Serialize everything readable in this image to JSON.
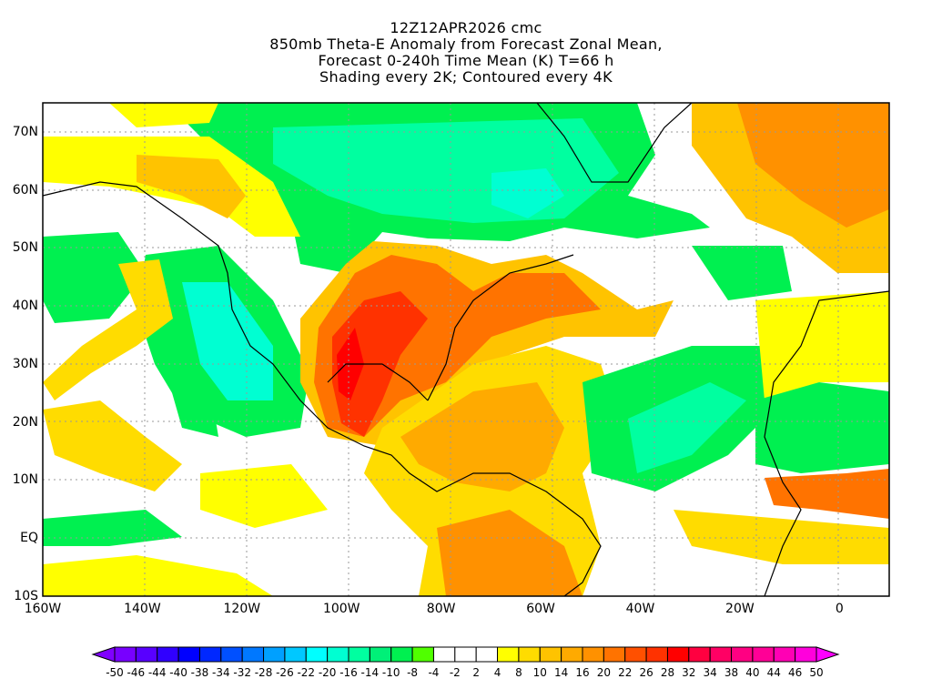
{
  "title": {
    "line1": "12Z12APR2026 cmc",
    "line2": "850mb Theta-E Anomaly from Forecast Zonal Mean,",
    "line3": "Forecast 0-240h Time Mean (K) T=66 h",
    "line4": "Shading every 2K; Contoured every 4K"
  },
  "axes": {
    "lat_labels": [
      "70N",
      "60N",
      "50N",
      "40N",
      "30N",
      "20N",
      "10N",
      "EQ",
      "10S"
    ],
    "lat_values": [
      70,
      60,
      50,
      40,
      30,
      20,
      10,
      0,
      -10
    ],
    "lon_labels": [
      "160W",
      "140W",
      "120W",
      "100W",
      "80W",
      "60W",
      "40W",
      "20W",
      "0"
    ],
    "lon_values": [
      -160,
      -140,
      -120,
      -100,
      -80,
      -60,
      -40,
      -20,
      0
    ],
    "lon_range": [
      -160,
      10
    ],
    "lat_range": [
      -10,
      75
    ]
  },
  "colorbar": {
    "labels": [
      "-50",
      "-46",
      "-44",
      "-40",
      "-38",
      "-34",
      "-32",
      "-28",
      "-26",
      "-22",
      "-20",
      "-16",
      "-14",
      "-10",
      "-8",
      "-4",
      "-2",
      "2",
      "4",
      "8",
      "10",
      "14",
      "16",
      "20",
      "22",
      "26",
      "28",
      "32",
      "34",
      "38",
      "40",
      "44",
      "46",
      "50"
    ],
    "low_arrow_color": "#8000ff",
    "high_arrow_color": "#ff00ff",
    "colors": [
      "#7800ff",
      "#5800ff",
      "#3000ff",
      "#0000ff",
      "#0028ff",
      "#0050ff",
      "#0078ff",
      "#00a0ff",
      "#00c8ff",
      "#00ffff",
      "#00ffd2",
      "#00ffa0",
      "#00f078",
      "#00f050",
      "#50ff00",
      "#ffffff",
      "#ffffff",
      "#ffffff",
      "#ffff00",
      "#ffdc00",
      "#ffc300",
      "#ffaa00",
      "#ff9100",
      "#ff7300",
      "#ff5000",
      "#ff3200",
      "#ff0000",
      "#ff0040",
      "#ff0064",
      "#ff0082",
      "#ff0096",
      "#ff00b4",
      "#ff00dc"
    ]
  }
}
